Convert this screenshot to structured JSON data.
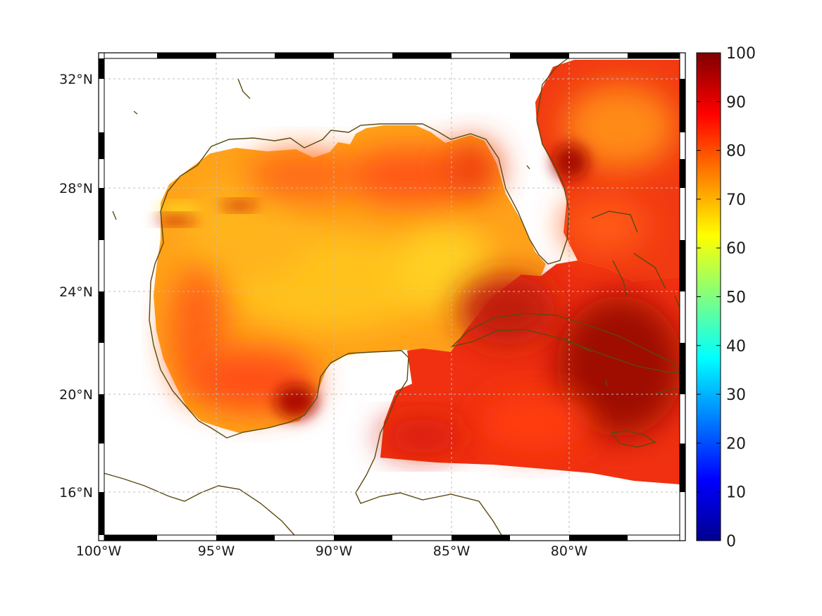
{
  "map": {
    "lon_range": [
      -100,
      -75
    ],
    "lat_range": [
      14,
      33
    ],
    "grid": "on",
    "frame": "black-white checkered border",
    "coastline_color": "#5a4a10",
    "x_ticks": [
      {
        "value": -100,
        "label": "100°W"
      },
      {
        "value": -95,
        "label": "95°W"
      },
      {
        "value": -90,
        "label": "90°W"
      },
      {
        "value": -85,
        "label": "85°W"
      },
      {
        "value": -80,
        "label": "80°W"
      }
    ],
    "y_ticks": [
      {
        "value": 32,
        "label": "32°N"
      },
      {
        "value": 28,
        "label": "28°N"
      },
      {
        "value": 24,
        "label": "24°N"
      },
      {
        "value": 20,
        "label": "20°N"
      },
      {
        "value": 16,
        "label": "16°N"
      }
    ]
  },
  "colorbar": {
    "min": 0,
    "max": 100,
    "colormap": "jet",
    "ticks": [
      "0",
      "10",
      "20",
      "30",
      "40",
      "50",
      "60",
      "70",
      "80",
      "90",
      "100"
    ]
  },
  "chart_data": {
    "type": "heatmap",
    "description_field": "gridded field over the Gulf of Mexico and western Caribbean",
    "value_range_shown": [
      62,
      96
    ],
    "xlim": [
      -100,
      -75
    ],
    "ylim": [
      14,
      33
    ],
    "regions": [
      {
        "lon": -91,
        "lat": 24.5,
        "value": 66
      },
      {
        "lon": -86,
        "lat": 25.5,
        "value": 64
      },
      {
        "lon": -96,
        "lat": 26,
        "value": 73
      },
      {
        "lon": -93.5,
        "lat": 29,
        "value": 80
      },
      {
        "lon": -86.5,
        "lat": 28.5,
        "value": 84
      },
      {
        "lon": -96,
        "lat": 20.5,
        "value": 84
      },
      {
        "lon": -93,
        "lat": 19.5,
        "value": 90
      },
      {
        "lon": -84,
        "lat": 23,
        "value": 90
      },
      {
        "lon": -79,
        "lat": 21,
        "value": 96
      },
      {
        "lon": -78,
        "lat": 30,
        "value": 74
      },
      {
        "lon": -80,
        "lat": 31,
        "value": 90
      },
      {
        "lon": -82,
        "lat": 18,
        "value": 88
      },
      {
        "lon": -97.8,
        "lat": 27.4,
        "value": 70
      }
    ]
  }
}
